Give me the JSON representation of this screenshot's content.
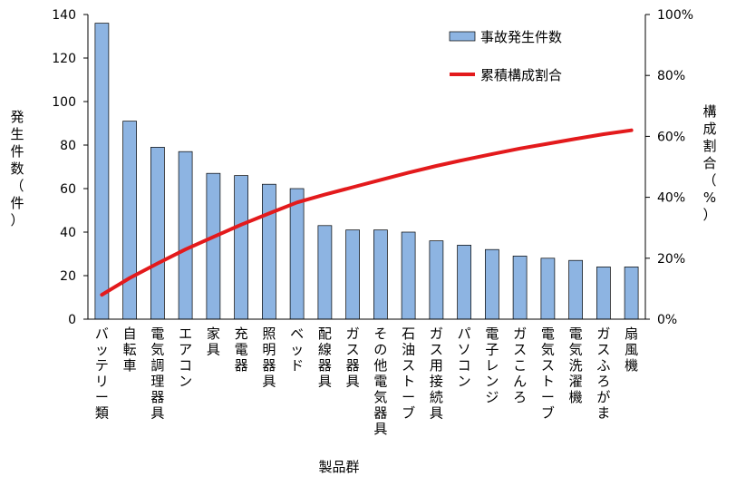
{
  "chart_data": {
    "type": "bar",
    "title": "",
    "xlabel": "製品群",
    "ylabel": "発生件数（件）",
    "y2label": "構成割合（%）",
    "ylim": [
      0,
      140
    ],
    "y2lim": [
      0,
      100
    ],
    "yticks": [
      0,
      20,
      40,
      60,
      80,
      100,
      120,
      140
    ],
    "y2ticks": [
      "0%",
      "20%",
      "40%",
      "60%",
      "80%",
      "100%"
    ],
    "categories": [
      "バッテリー類",
      "自転車",
      "電気調理器具",
      "エアコン",
      "家具",
      "充電器",
      "照明器具",
      "ベッド",
      "配線器具",
      "ガス器具",
      "その他電気器具",
      "石油ストーブ",
      "ガス用接続具",
      "パソコン",
      "電子レンジ",
      "ガスこんろ",
      "電気ストーブ",
      "電気洗濯機",
      "ガスふろがま",
      "扇風機"
    ],
    "series": [
      {
        "name": "事故発生件数",
        "type": "bar",
        "axis": "left",
        "color": "#8db4e2",
        "values": [
          136,
          91,
          79,
          77,
          67,
          66,
          62,
          60,
          43,
          41,
          41,
          40,
          36,
          34,
          32,
          29,
          28,
          27,
          24,
          24
        ]
      },
      {
        "name": "累積構成割合",
        "type": "line",
        "axis": "right",
        "unit": "%",
        "color": "#e31a1c",
        "values": [
          8,
          13.5,
          18.3,
          22.9,
          27,
          31,
          34.7,
          38.3,
          40.9,
          43.3,
          45.7,
          48.1,
          50.3,
          52.3,
          54.2,
          56,
          57.6,
          59.2,
          60.7,
          62
        ]
      }
    ],
    "legend": {
      "position": "top-right",
      "entries": [
        "事故発生件数",
        "累積構成割合"
      ]
    },
    "grid": false
  }
}
